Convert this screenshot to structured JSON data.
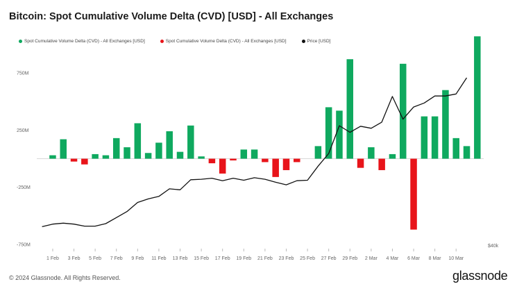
{
  "title": "Bitcoin: Spot Cumulative Volume Delta (CVD) [USD] - All Exchanges",
  "footer": {
    "copyright": "© 2024 Glassnode. All Rights Reserved.",
    "logo": "glassnode"
  },
  "colors": {
    "positive": "#0fa95f",
    "negative": "#e8141a",
    "price": "#111111"
  },
  "chart_data": {
    "type": "bar",
    "title": "Bitcoin: Spot Cumulative Volume Delta (CVD) [USD] - All Exchanges",
    "legend": [
      {
        "name": "Spot Cumulative Volume Delta (CVD) - All Exchanges [USD]",
        "color": "#0fa95f",
        "marker": "dot"
      },
      {
        "name": "Spot Cumulative Volume Delta (CVD) - All Exchanges [USD]",
        "color": "#e8141a",
        "marker": "dot"
      },
      {
        "name": "Price [USD]",
        "color": "#111111",
        "marker": "dot"
      }
    ],
    "legend_position": "top-left",
    "y_axis_left": {
      "ticks": [
        "750M",
        "250M",
        "-250M",
        "-750M"
      ],
      "range_millions": [
        -750,
        850
      ]
    },
    "y_axis_right": {
      "ticks": [
        "$40k"
      ]
    },
    "x_ticks": [
      "1 Feb",
      "3 Feb",
      "5 Feb",
      "7 Feb",
      "9 Feb",
      "11 Feb",
      "13 Feb",
      "15 Feb",
      "17 Feb",
      "19 Feb",
      "21 Feb",
      "23 Feb",
      "25 Feb",
      "27 Feb",
      "29 Feb",
      "2 Mar",
      "4 Mar",
      "6 Mar",
      "8 Mar",
      "10 Mar"
    ],
    "x_tick_days": [
      1,
      3,
      5,
      7,
      9,
      11,
      13,
      15,
      17,
      19,
      21,
      23,
      25,
      27,
      29,
      31,
      33,
      35,
      37,
      39
    ],
    "bar_values_millions": [
      {
        "day": 1,
        "value": 30
      },
      {
        "day": 2,
        "value": 170
      },
      {
        "day": 3,
        "value": -25
      },
      {
        "day": 4,
        "value": -50
      },
      {
        "day": 5,
        "value": 40
      },
      {
        "day": 6,
        "value": 30
      },
      {
        "day": 7,
        "value": 180
      },
      {
        "day": 8,
        "value": 100
      },
      {
        "day": 9,
        "value": 310
      },
      {
        "day": 10,
        "value": 50
      },
      {
        "day": 11,
        "value": 140
      },
      {
        "day": 12,
        "value": 240
      },
      {
        "day": 13,
        "value": 60
      },
      {
        "day": 14,
        "value": 290
      },
      {
        "day": 15,
        "value": 20
      },
      {
        "day": 16,
        "value": -40
      },
      {
        "day": 17,
        "value": -130
      },
      {
        "day": 18,
        "value": -15
      },
      {
        "day": 19,
        "value": 80
      },
      {
        "day": 20,
        "value": 80
      },
      {
        "day": 21,
        "value": -30
      },
      {
        "day": 22,
        "value": -160
      },
      {
        "day": 23,
        "value": -100
      },
      {
        "day": 24,
        "value": -30
      },
      {
        "day": 26,
        "value": 110
      },
      {
        "day": 27,
        "value": 450
      },
      {
        "day": 28,
        "value": 420
      },
      {
        "day": 29,
        "value": 870
      },
      {
        "day": 30,
        "value": -80
      },
      {
        "day": 31,
        "value": 100
      },
      {
        "day": 32,
        "value": -100
      },
      {
        "day": 33,
        "value": 40
      },
      {
        "day": 34,
        "value": 830
      },
      {
        "day": 35,
        "value": -620
      },
      {
        "day": 36,
        "value": 370
      },
      {
        "day": 37,
        "value": 370
      },
      {
        "day": 38,
        "value": 600
      },
      {
        "day": 39,
        "value": 180
      },
      {
        "day": 40,
        "value": 110
      },
      {
        "day": 41,
        "value": 1070
      }
    ],
    "price_usd": [
      {
        "day": 0,
        "value": 42500
      },
      {
        "day": 1,
        "value": 43000
      },
      {
        "day": 2,
        "value": 43200
      },
      {
        "day": 3,
        "value": 43000
      },
      {
        "day": 4,
        "value": 42600
      },
      {
        "day": 5,
        "value": 42600
      },
      {
        "day": 6,
        "value": 43100
      },
      {
        "day": 7,
        "value": 44300
      },
      {
        "day": 8,
        "value": 45500
      },
      {
        "day": 9,
        "value": 47300
      },
      {
        "day": 10,
        "value": 48000
      },
      {
        "day": 11,
        "value": 48500
      },
      {
        "day": 12,
        "value": 50000
      },
      {
        "day": 13,
        "value": 49800
      },
      {
        "day": 14,
        "value": 51800
      },
      {
        "day": 15,
        "value": 51900
      },
      {
        "day": 16,
        "value": 52100
      },
      {
        "day": 17,
        "value": 51600
      },
      {
        "day": 18,
        "value": 52100
      },
      {
        "day": 19,
        "value": 51700
      },
      {
        "day": 20,
        "value": 52200
      },
      {
        "day": 21,
        "value": 51900
      },
      {
        "day": 22,
        "value": 51300
      },
      {
        "day": 23,
        "value": 50800
      },
      {
        "day": 24,
        "value": 51600
      },
      {
        "day": 25,
        "value": 51700
      },
      {
        "day": 26,
        "value": 54500
      },
      {
        "day": 27,
        "value": 57000
      },
      {
        "day": 28,
        "value": 62500
      },
      {
        "day": 29,
        "value": 61200
      },
      {
        "day": 30,
        "value": 62400
      },
      {
        "day": 31,
        "value": 62000
      },
      {
        "day": 32,
        "value": 63200
      },
      {
        "day": 33,
        "value": 68300
      },
      {
        "day": 34,
        "value": 63800
      },
      {
        "day": 35,
        "value": 66200
      },
      {
        "day": 36,
        "value": 67000
      },
      {
        "day": 37,
        "value": 68400
      },
      {
        "day": 38,
        "value": 68400
      },
      {
        "day": 39,
        "value": 68800
      },
      {
        "day": 40,
        "value": 72000
      }
    ]
  }
}
